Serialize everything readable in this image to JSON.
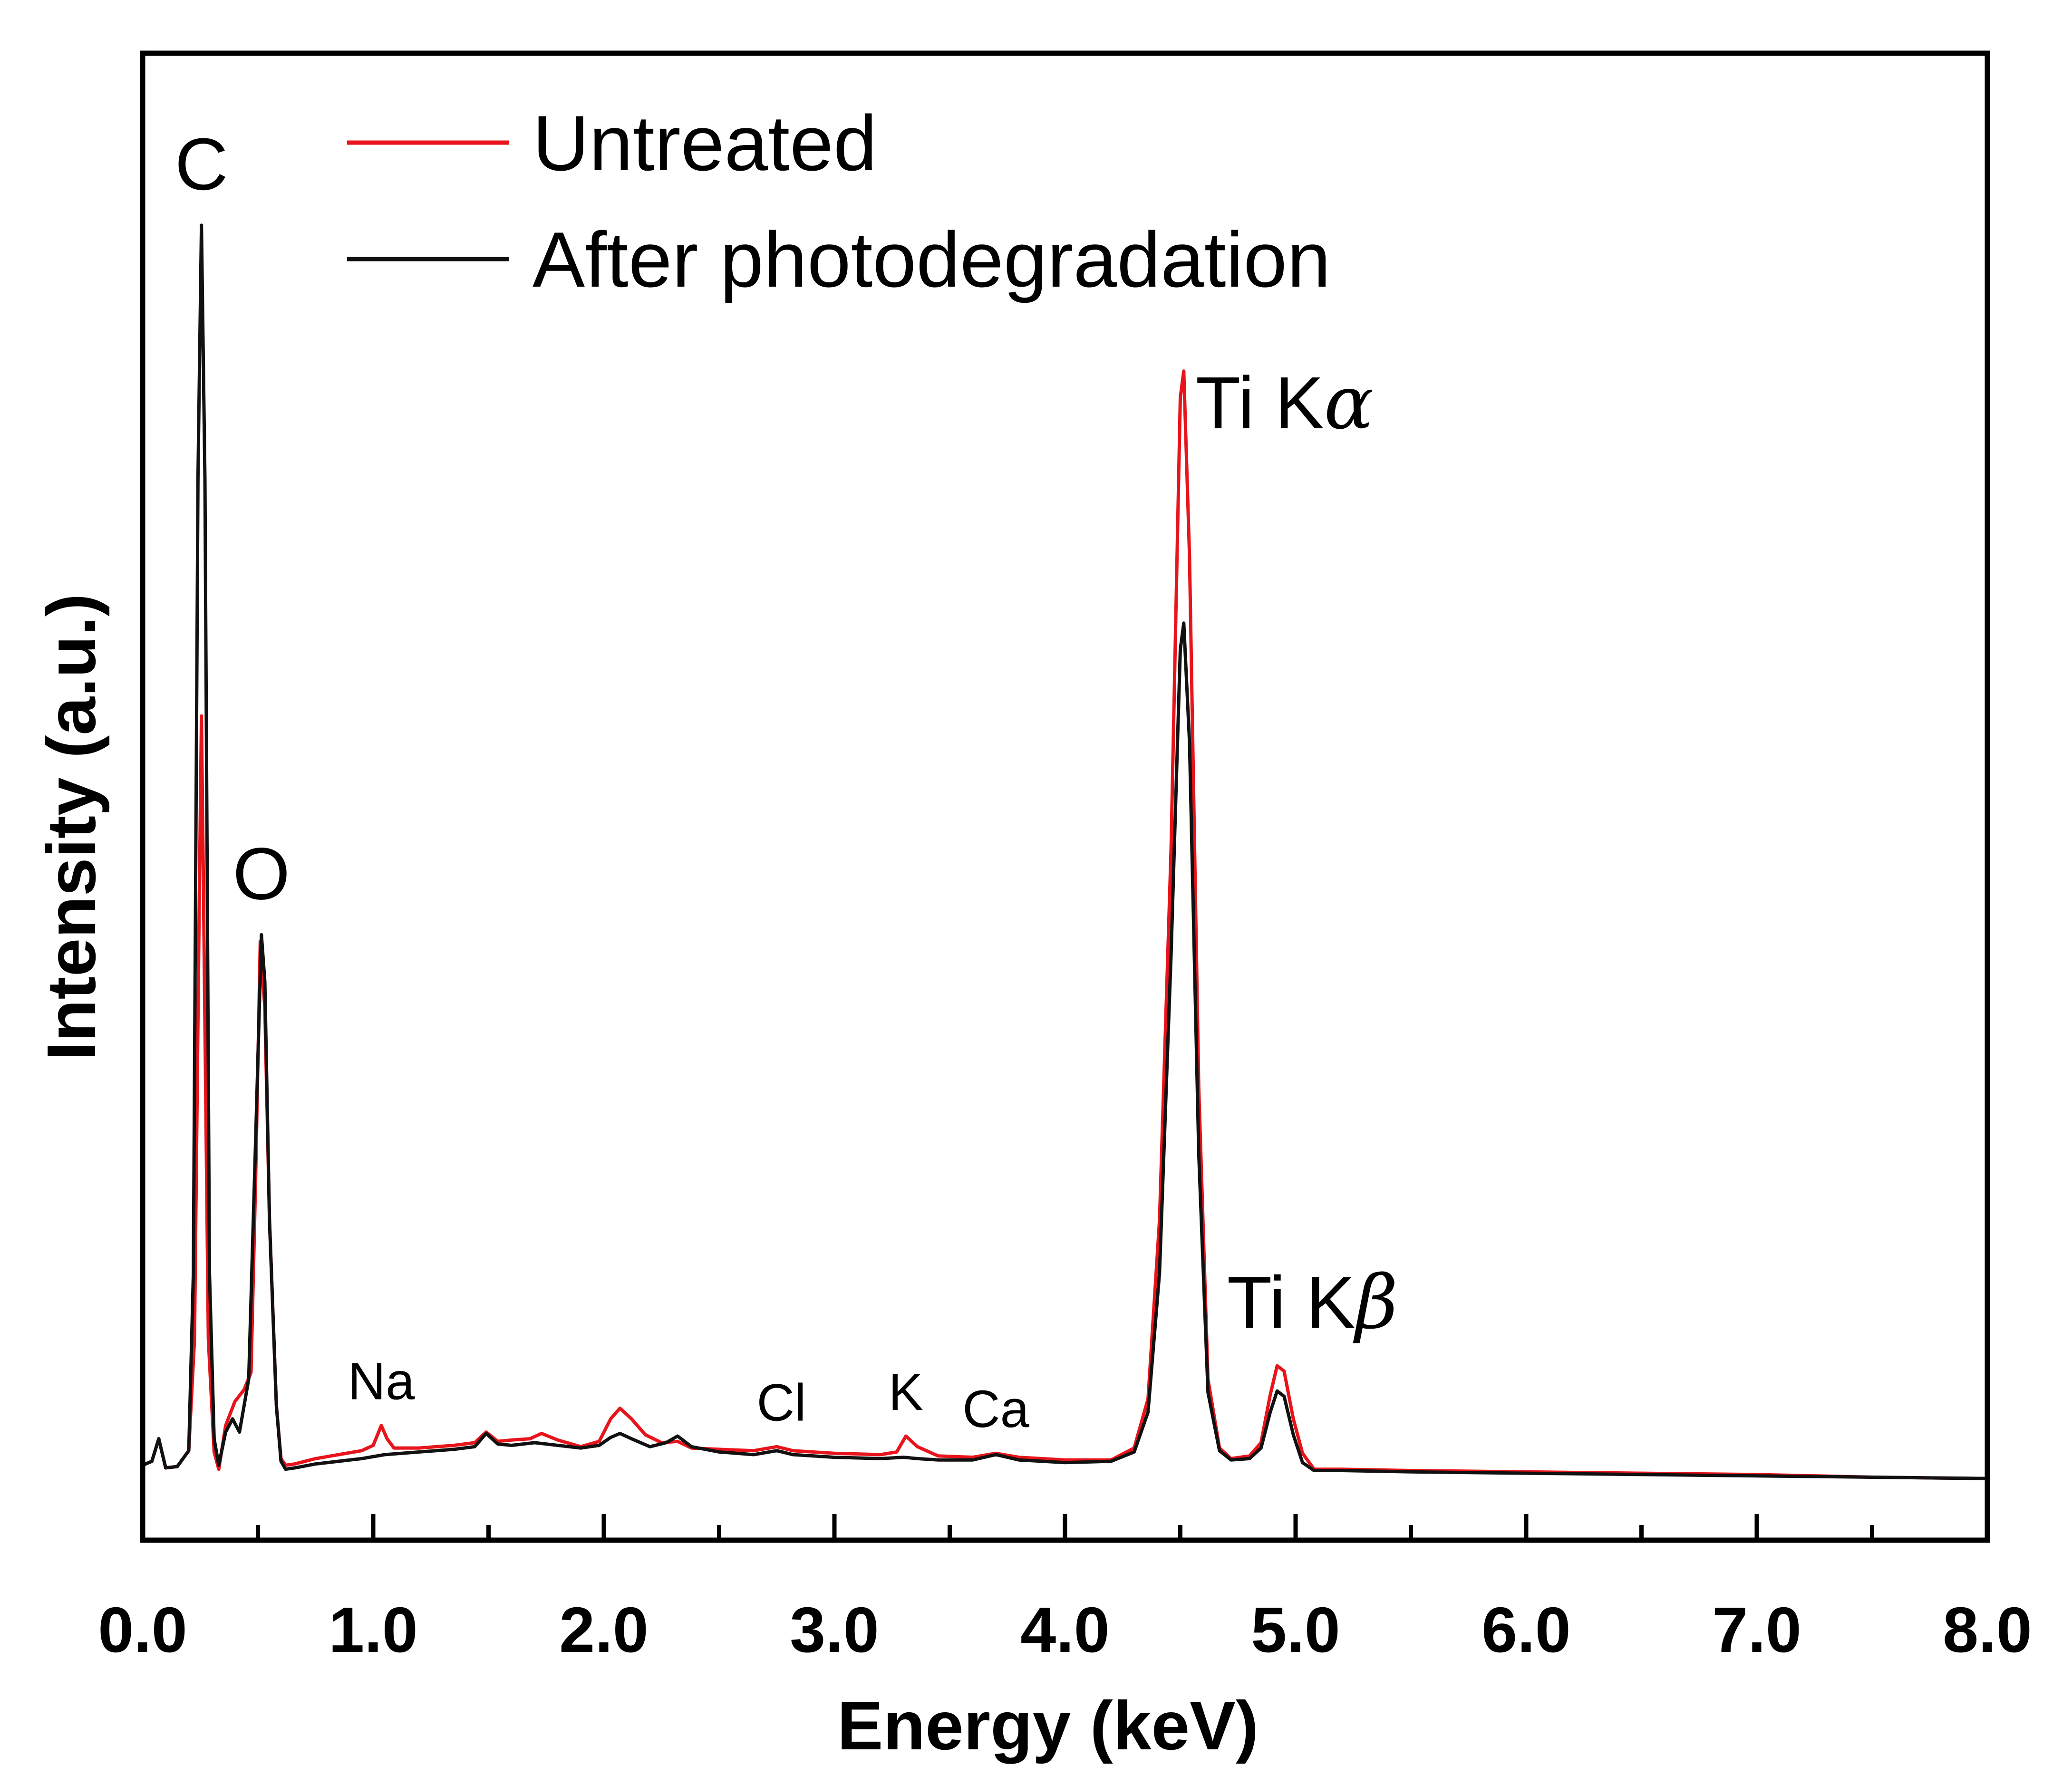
{
  "chart_data": {
    "type": "line",
    "title": "",
    "xlabel": "Energy (keV)",
    "ylabel": "Intensity (a.u.)",
    "xlim": [
      0.0,
      8.0
    ],
    "ylim": [
      0,
      100
    ],
    "x_ticks": [
      "0.0",
      "1.0",
      "2.0",
      "3.0",
      "4.0",
      "5.0",
      "6.0",
      "7.0",
      "8.0"
    ],
    "legend_position": "top-left",
    "colors": {
      "untreated": "#e8141b",
      "after": "#111111"
    },
    "series": [
      {
        "name": "Untreated",
        "color": "#e8141b",
        "points": [
          [
            0.0,
            3.5
          ],
          [
            0.04,
            3.8
          ],
          [
            0.07,
            5.5
          ],
          [
            0.1,
            3.3
          ],
          [
            0.15,
            3.4
          ],
          [
            0.2,
            4.6
          ],
          [
            0.225,
            13
          ],
          [
            0.245,
            45
          ],
          [
            0.255,
            60
          ],
          [
            0.265,
            45
          ],
          [
            0.285,
            13
          ],
          [
            0.31,
            4.5
          ],
          [
            0.33,
            3.2
          ],
          [
            0.36,
            6.5
          ],
          [
            0.4,
            8.3
          ],
          [
            0.44,
            9.2
          ],
          [
            0.47,
            10.5
          ],
          [
            0.49,
            25
          ],
          [
            0.51,
            43
          ],
          [
            0.53,
            38
          ],
          [
            0.55,
            22
          ],
          [
            0.58,
            8
          ],
          [
            0.6,
            4
          ],
          [
            0.62,
            3.5
          ],
          [
            0.66,
            3.6
          ],
          [
            0.75,
            4.0
          ],
          [
            0.85,
            4.3
          ],
          [
            0.95,
            4.6
          ],
          [
            1.0,
            5.0
          ],
          [
            1.035,
            6.5
          ],
          [
            1.06,
            5.5
          ],
          [
            1.09,
            4.8
          ],
          [
            1.2,
            4.8
          ],
          [
            1.35,
            5.0
          ],
          [
            1.44,
            5.2
          ],
          [
            1.49,
            6.0
          ],
          [
            1.54,
            5.3
          ],
          [
            1.6,
            5.4
          ],
          [
            1.68,
            5.5
          ],
          [
            1.73,
            5.9
          ],
          [
            1.8,
            5.4
          ],
          [
            1.9,
            4.9
          ],
          [
            1.98,
            5.3
          ],
          [
            2.03,
            7.0
          ],
          [
            2.07,
            7.8
          ],
          [
            2.12,
            7.0
          ],
          [
            2.18,
            5.8
          ],
          [
            2.25,
            5.2
          ],
          [
            2.32,
            5.3
          ],
          [
            2.38,
            4.8
          ],
          [
            2.5,
            4.7
          ],
          [
            2.65,
            4.6
          ],
          [
            2.75,
            4.9
          ],
          [
            2.82,
            4.6
          ],
          [
            3.0,
            4.4
          ],
          [
            3.2,
            4.3
          ],
          [
            3.27,
            4.5
          ],
          [
            3.31,
            5.7
          ],
          [
            3.36,
            4.9
          ],
          [
            3.45,
            4.2
          ],
          [
            3.6,
            4.1
          ],
          [
            3.7,
            4.4
          ],
          [
            3.8,
            4.1
          ],
          [
            4.0,
            3.9
          ],
          [
            4.2,
            3.9
          ],
          [
            4.3,
            4.8
          ],
          [
            4.36,
            8.5
          ],
          [
            4.41,
            22
          ],
          [
            4.46,
            50
          ],
          [
            4.5,
            84
          ],
          [
            4.515,
            86
          ],
          [
            4.54,
            72
          ],
          [
            4.58,
            32
          ],
          [
            4.62,
            10
          ],
          [
            4.67,
            4.8
          ],
          [
            4.72,
            4.0
          ],
          [
            4.8,
            4.2
          ],
          [
            4.85,
            5.2
          ],
          [
            4.89,
            8.8
          ],
          [
            4.92,
            11
          ],
          [
            4.95,
            10.6
          ],
          [
            4.99,
            7.0
          ],
          [
            5.03,
            4.4
          ],
          [
            5.08,
            3.2
          ],
          [
            5.2,
            3.2
          ],
          [
            5.5,
            3.1
          ],
          [
            6.0,
            3.0
          ],
          [
            6.5,
            2.9
          ],
          [
            7.0,
            2.8
          ],
          [
            7.5,
            2.6
          ],
          [
            8.0,
            2.5
          ]
        ]
      },
      {
        "name": "After photodegradation",
        "color": "#111111",
        "points": [
          [
            0.0,
            3.5
          ],
          [
            0.04,
            3.8
          ],
          [
            0.07,
            5.5
          ],
          [
            0.1,
            3.3
          ],
          [
            0.15,
            3.4
          ],
          [
            0.2,
            4.6
          ],
          [
            0.22,
            18
          ],
          [
            0.24,
            78
          ],
          [
            0.255,
            97
          ],
          [
            0.27,
            78
          ],
          [
            0.29,
            18
          ],
          [
            0.31,
            5.5
          ],
          [
            0.33,
            3.5
          ],
          [
            0.36,
            6.0
          ],
          [
            0.39,
            7.0
          ],
          [
            0.42,
            6.0
          ],
          [
            0.46,
            10
          ],
          [
            0.49,
            28
          ],
          [
            0.515,
            43.5
          ],
          [
            0.53,
            40
          ],
          [
            0.55,
            22
          ],
          [
            0.58,
            8
          ],
          [
            0.6,
            3.8
          ],
          [
            0.62,
            3.2
          ],
          [
            0.66,
            3.3
          ],
          [
            0.75,
            3.6
          ],
          [
            0.85,
            3.8
          ],
          [
            0.95,
            4.0
          ],
          [
            1.05,
            4.3
          ],
          [
            1.2,
            4.5
          ],
          [
            1.35,
            4.7
          ],
          [
            1.44,
            4.9
          ],
          [
            1.49,
            5.9
          ],
          [
            1.54,
            5.1
          ],
          [
            1.6,
            5.0
          ],
          [
            1.7,
            5.2
          ],
          [
            1.8,
            5.0
          ],
          [
            1.9,
            4.8
          ],
          [
            1.98,
            5.0
          ],
          [
            2.03,
            5.6
          ],
          [
            2.07,
            5.9
          ],
          [
            2.12,
            5.5
          ],
          [
            2.2,
            4.9
          ],
          [
            2.27,
            5.2
          ],
          [
            2.32,
            5.7
          ],
          [
            2.38,
            4.9
          ],
          [
            2.5,
            4.5
          ],
          [
            2.65,
            4.3
          ],
          [
            2.75,
            4.6
          ],
          [
            2.82,
            4.3
          ],
          [
            3.0,
            4.1
          ],
          [
            3.2,
            4.0
          ],
          [
            3.3,
            4.1
          ],
          [
            3.36,
            4.0
          ],
          [
            3.45,
            3.9
          ],
          [
            3.6,
            3.9
          ],
          [
            3.7,
            4.3
          ],
          [
            3.8,
            3.9
          ],
          [
            4.0,
            3.7
          ],
          [
            4.2,
            3.8
          ],
          [
            4.3,
            4.5
          ],
          [
            4.36,
            7.5
          ],
          [
            4.41,
            18
          ],
          [
            4.46,
            42
          ],
          [
            4.5,
            65
          ],
          [
            4.515,
            67
          ],
          [
            4.54,
            58
          ],
          [
            4.58,
            27
          ],
          [
            4.62,
            9
          ],
          [
            4.67,
            4.6
          ],
          [
            4.72,
            3.9
          ],
          [
            4.8,
            4.0
          ],
          [
            4.85,
            4.8
          ],
          [
            4.89,
            7.5
          ],
          [
            4.92,
            9.1
          ],
          [
            4.95,
            8.7
          ],
          [
            4.99,
            5.8
          ],
          [
            5.03,
            3.7
          ],
          [
            5.08,
            3.1
          ],
          [
            5.2,
            3.1
          ],
          [
            5.5,
            3.0
          ],
          [
            6.0,
            2.9
          ],
          [
            6.5,
            2.8
          ],
          [
            7.0,
            2.7
          ],
          [
            7.5,
            2.6
          ],
          [
            8.0,
            2.5
          ]
        ]
      }
    ],
    "annotations": [
      {
        "id": "C",
        "text": "C",
        "x": 0.255,
        "y": 97,
        "size": "large"
      },
      {
        "id": "O",
        "text": "O",
        "x": 0.515,
        "y": 43.5,
        "size": "large"
      },
      {
        "id": "Na",
        "text": "Na",
        "x": 1.035,
        "y": 6.5,
        "size": "small"
      },
      {
        "id": "Cl",
        "text": "Cl",
        "x": 2.77,
        "y": 4.9,
        "size": "small"
      },
      {
        "id": "K",
        "text": "K",
        "x": 3.31,
        "y": 5.7,
        "size": "small"
      },
      {
        "id": "Ca",
        "text": "Ca",
        "x": 3.7,
        "y": 4.4,
        "size": "small"
      }
    ],
    "ti_labels": {
      "ka": {
        "prefix": "Ti K",
        "symbol": "α",
        "x": 4.515,
        "y": 86
      },
      "kb": {
        "prefix": "Ti K",
        "symbol": "β",
        "x": 4.95,
        "y": 11
      }
    }
  }
}
